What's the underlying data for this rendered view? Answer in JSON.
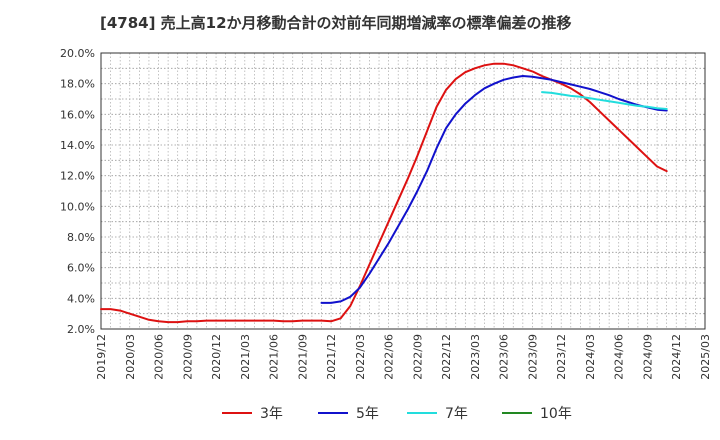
{
  "chart_data": {
    "type": "line",
    "title": "[4784]  売上高12か月移動合計の対前年同期増減率の標準偏差の推移",
    "ylim": [
      2.0,
      20.0
    ],
    "y_ticks": [
      "2.0%",
      "4.0%",
      "6.0%",
      "8.0%",
      "10.0%",
      "12.0%",
      "14.0%",
      "16.0%",
      "18.0%",
      "20.0%"
    ],
    "x_range": [
      "2019/12",
      "2025/03"
    ],
    "x_ticks": [
      "2019/12",
      "2020/03",
      "2020/06",
      "2020/09",
      "2020/12",
      "2021/03",
      "2021/06",
      "2021/09",
      "2021/12",
      "2022/03",
      "2022/06",
      "2022/09",
      "2022/12",
      "2023/03",
      "2023/06",
      "2023/09",
      "2023/12",
      "2024/03",
      "2024/06",
      "2024/09",
      "2024/12",
      "2025/03"
    ],
    "grid": true,
    "legend_position": "bottom",
    "series": [
      {
        "name": "3年",
        "color": "#dd1111",
        "points": [
          [
            "2019/12",
            3.3
          ],
          [
            "2020/01",
            3.3
          ],
          [
            "2020/02",
            3.2
          ],
          [
            "2020/03",
            3.0
          ],
          [
            "2020/04",
            2.8
          ],
          [
            "2020/05",
            2.6
          ],
          [
            "2020/06",
            2.5
          ],
          [
            "2020/07",
            2.45
          ],
          [
            "2020/08",
            2.45
          ],
          [
            "2020/09",
            2.5
          ],
          [
            "2020/10",
            2.5
          ],
          [
            "2020/11",
            2.55
          ],
          [
            "2020/12",
            2.55
          ],
          [
            "2021/01",
            2.55
          ],
          [
            "2021/02",
            2.55
          ],
          [
            "2021/03",
            2.55
          ],
          [
            "2021/04",
            2.55
          ],
          [
            "2021/05",
            2.55
          ],
          [
            "2021/06",
            2.55
          ],
          [
            "2021/07",
            2.5
          ],
          [
            "2021/08",
            2.5
          ],
          [
            "2021/09",
            2.55
          ],
          [
            "2021/10",
            2.55
          ],
          [
            "2021/11",
            2.55
          ],
          [
            "2021/12",
            2.5
          ],
          [
            "2022/01",
            2.7
          ],
          [
            "2022/02",
            3.5
          ],
          [
            "2022/03",
            4.8
          ],
          [
            "2022/04",
            6.2
          ],
          [
            "2022/05",
            7.6
          ],
          [
            "2022/06",
            9.0
          ],
          [
            "2022/07",
            10.4
          ],
          [
            "2022/08",
            11.8
          ],
          [
            "2022/09",
            13.3
          ],
          [
            "2022/10",
            14.9
          ],
          [
            "2022/11",
            16.5
          ],
          [
            "2022/12",
            17.6
          ],
          [
            "2023/01",
            18.3
          ],
          [
            "2023/02",
            18.75
          ],
          [
            "2023/03",
            19.0
          ],
          [
            "2023/04",
            19.2
          ],
          [
            "2023/05",
            19.3
          ],
          [
            "2023/06",
            19.3
          ],
          [
            "2023/07",
            19.2
          ],
          [
            "2023/08",
            19.0
          ],
          [
            "2023/09",
            18.8
          ],
          [
            "2023/10",
            18.5
          ],
          [
            "2023/11",
            18.25
          ],
          [
            "2023/12",
            18.0
          ],
          [
            "2024/01",
            17.7
          ],
          [
            "2024/02",
            17.3
          ],
          [
            "2024/03",
            16.8
          ],
          [
            "2024/04",
            16.2
          ],
          [
            "2024/05",
            15.6
          ],
          [
            "2024/06",
            15.0
          ],
          [
            "2024/07",
            14.4
          ],
          [
            "2024/08",
            13.8
          ],
          [
            "2024/09",
            13.2
          ],
          [
            "2024/10",
            12.6
          ],
          [
            "2024/11",
            12.3
          ]
        ]
      },
      {
        "name": "5年",
        "color": "#1111cc",
        "points": [
          [
            "2021/11",
            3.7
          ],
          [
            "2021/12",
            3.7
          ],
          [
            "2022/01",
            3.8
          ],
          [
            "2022/02",
            4.1
          ],
          [
            "2022/03",
            4.7
          ],
          [
            "2022/04",
            5.6
          ],
          [
            "2022/05",
            6.6
          ],
          [
            "2022/06",
            7.6
          ],
          [
            "2022/07",
            8.7
          ],
          [
            "2022/08",
            9.8
          ],
          [
            "2022/09",
            11.0
          ],
          [
            "2022/10",
            12.3
          ],
          [
            "2022/11",
            13.8
          ],
          [
            "2022/12",
            15.1
          ],
          [
            "2023/01",
            16.0
          ],
          [
            "2023/02",
            16.7
          ],
          [
            "2023/03",
            17.25
          ],
          [
            "2023/04",
            17.7
          ],
          [
            "2023/05",
            18.0
          ],
          [
            "2023/06",
            18.25
          ],
          [
            "2023/07",
            18.4
          ],
          [
            "2023/08",
            18.5
          ],
          [
            "2023/09",
            18.45
          ],
          [
            "2023/10",
            18.35
          ],
          [
            "2023/11",
            18.25
          ],
          [
            "2023/12",
            18.1
          ],
          [
            "2024/01",
            17.95
          ],
          [
            "2024/02",
            17.8
          ],
          [
            "2024/03",
            17.65
          ],
          [
            "2024/04",
            17.45
          ],
          [
            "2024/05",
            17.25
          ],
          [
            "2024/06",
            17.0
          ],
          [
            "2024/07",
            16.8
          ],
          [
            "2024/08",
            16.6
          ],
          [
            "2024/09",
            16.45
          ],
          [
            "2024/10",
            16.3
          ],
          [
            "2024/11",
            16.25
          ]
        ]
      },
      {
        "name": "7年",
        "color": "#22dddd",
        "points": [
          [
            "2023/10",
            17.45
          ],
          [
            "2023/11",
            17.4
          ],
          [
            "2023/12",
            17.3
          ],
          [
            "2024/01",
            17.2
          ],
          [
            "2024/02",
            17.15
          ],
          [
            "2024/03",
            17.05
          ],
          [
            "2024/04",
            16.95
          ],
          [
            "2024/05",
            16.85
          ],
          [
            "2024/06",
            16.75
          ],
          [
            "2024/07",
            16.65
          ],
          [
            "2024/08",
            16.55
          ],
          [
            "2024/09",
            16.5
          ],
          [
            "2024/10",
            16.4
          ],
          [
            "2024/11",
            16.35
          ]
        ]
      },
      {
        "name": "10年",
        "color": "#228822",
        "points": []
      }
    ]
  }
}
